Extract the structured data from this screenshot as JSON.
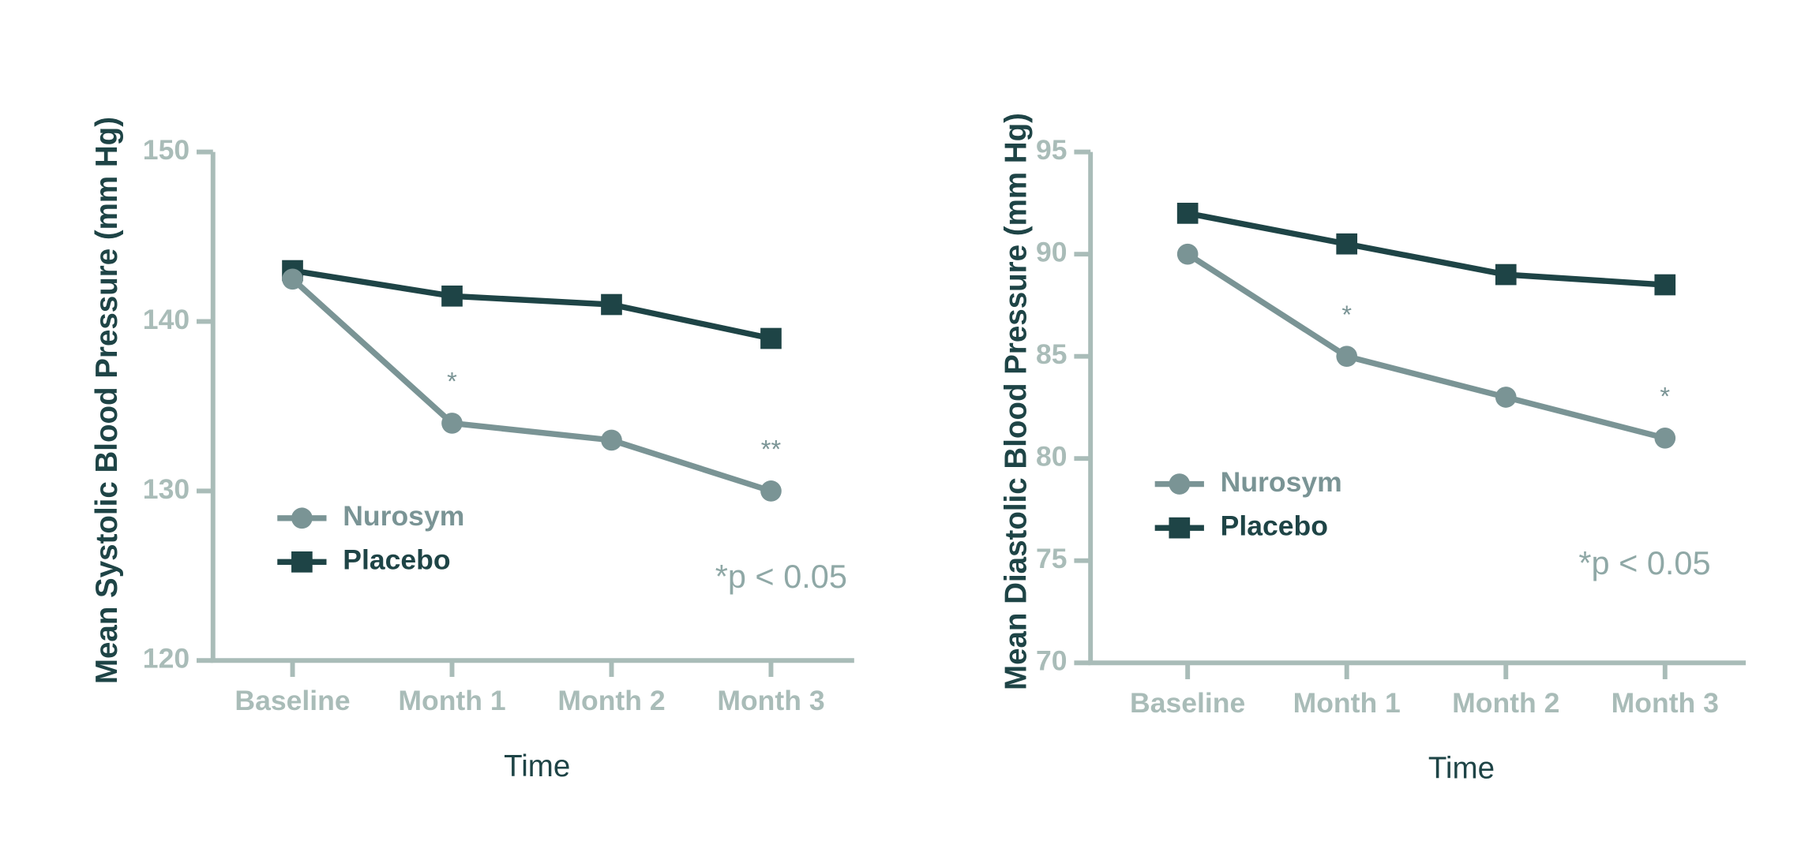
{
  "chart_data": [
    {
      "type": "line",
      "y_label": "Mean Systolic Blood Pressure (mm Hg)",
      "x_label": "Time",
      "categories": [
        "Baseline",
        "Month 1",
        "Month 2",
        "Month 3"
      ],
      "series": [
        {
          "name": "Nurosym",
          "color": "#7a9495",
          "marker": "circle",
          "values": [
            142.5,
            134,
            133,
            130
          ],
          "significance": [
            null,
            "*",
            null,
            "**"
          ]
        },
        {
          "name": "Placebo",
          "color": "#1e4446",
          "marker": "square",
          "values": [
            143,
            141.5,
            141,
            139
          ]
        }
      ],
      "ylim": [
        120,
        150
      ],
      "yticks": [
        120,
        130,
        140,
        150
      ],
      "legend": "lower left",
      "note": "*p < 0.05",
      "axis_color": "#a9bcb8"
    },
    {
      "type": "line",
      "y_label": "Mean Diastolic Blood Pressure (mm Hg)",
      "x_label": "Time",
      "categories": [
        "Baseline",
        "Month 1",
        "Month 2",
        "Month 3"
      ],
      "series": [
        {
          "name": "Nurosym",
          "color": "#7a9495",
          "marker": "circle",
          "values": [
            90,
            85,
            83,
            81
          ],
          "significance": [
            null,
            "*",
            null,
            "*"
          ]
        },
        {
          "name": "Placebo",
          "color": "#1e4446",
          "marker": "square",
          "values": [
            92,
            90.5,
            89,
            88.5
          ]
        }
      ],
      "ylim": [
        70,
        95
      ],
      "yticks": [
        70,
        75,
        80,
        85,
        90,
        95
      ],
      "legend": "left",
      "note": "*p < 0.05",
      "axis_color": "#a9bcb8"
    }
  ]
}
